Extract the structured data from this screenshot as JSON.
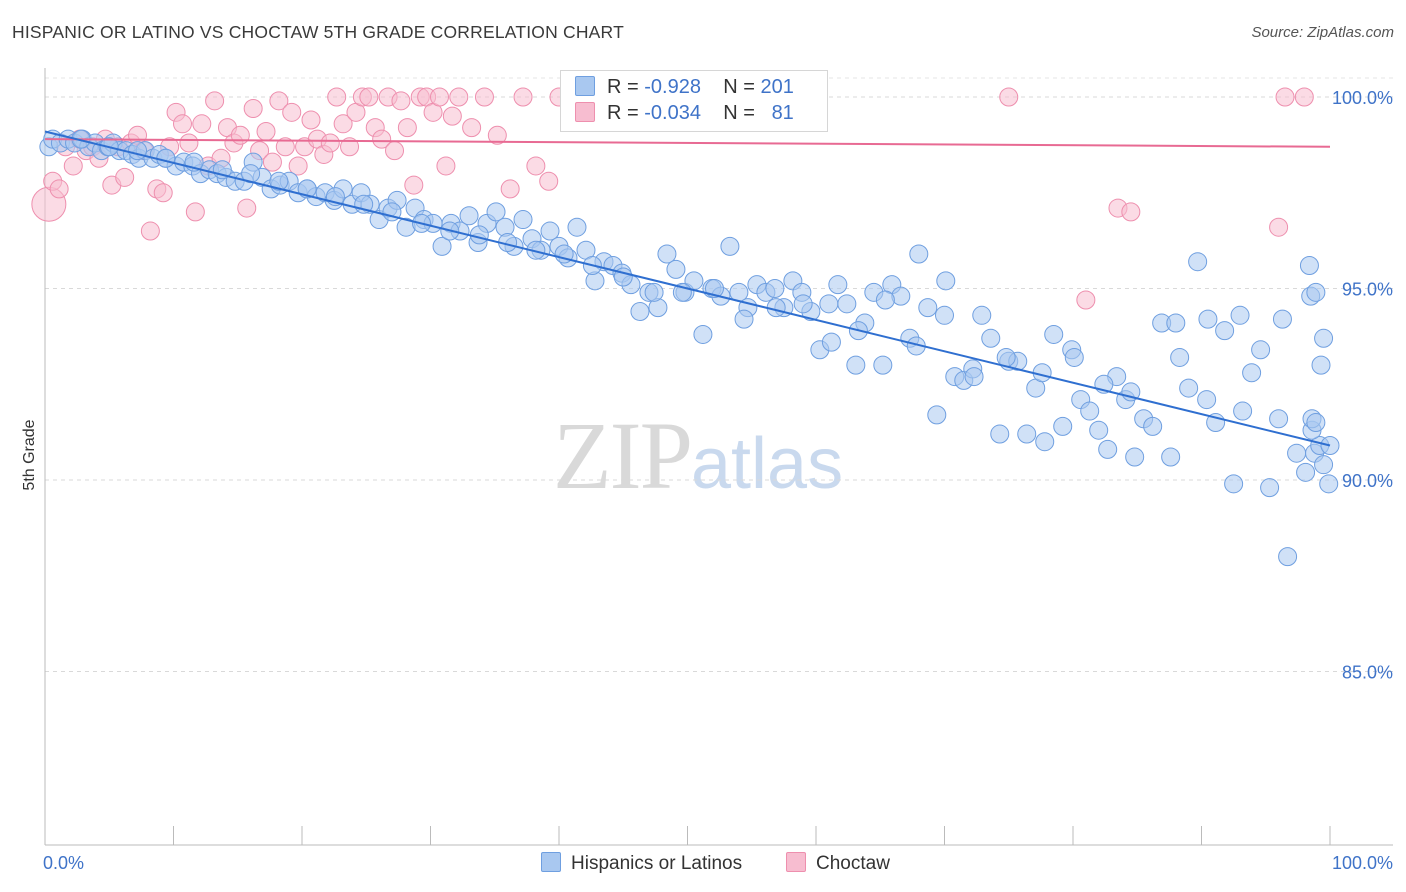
{
  "title": "HISPANIC OR LATINO VS CHOCTAW 5TH GRADE CORRELATION CHART",
  "source": "Source: ZipAtlas.com",
  "watermark": {
    "zip": "ZIP",
    "atlas": "atlas"
  },
  "legend": {
    "rows": [
      {
        "r_label": "R =",
        "r_value": "-0.928",
        "n_label": "N =",
        "n_value": "201"
      },
      {
        "r_label": "R =",
        "r_value": "-0.034",
        "n_label": "N =",
        "n_value": "81"
      }
    ]
  },
  "bottom_legend": {
    "series1": "Hispanics or Latinos",
    "series2": "Choctaw"
  },
  "colors": {
    "blue_fill": "#a9c8f0",
    "blue_stroke": "#6f9fe0",
    "blue_line": "#2f6fd0",
    "pink_fill": "#f7bdd0",
    "pink_stroke": "#ee8fae",
    "pink_line": "#e86a93",
    "tick_text": "#3f73c8"
  },
  "chart_data": {
    "type": "scatter",
    "title": "HISPANIC OR LATINO VS CHOCTAW 5TH GRADE CORRELATION CHART",
    "xlabel": "",
    "ylabel": "5th Grade",
    "xlim": [
      0,
      100
    ],
    "ylim": [
      80.0,
      100.5
    ],
    "x_tick_labels": [
      "0.0%",
      "100.0%"
    ],
    "y_ticks": [
      85.0,
      90.0,
      95.0,
      100.0
    ],
    "y_tick_labels": [
      "85.0%",
      "90.0%",
      "95.0%",
      "100.0%"
    ],
    "grid": "horizontal dashed",
    "legend_position": "top-center",
    "series": [
      {
        "name": "Hispanics or Latinos",
        "r": -0.928,
        "n": 201,
        "trend": [
          [
            0,
            99.1
          ],
          [
            100,
            90.9
          ]
        ],
        "points": [
          [
            0.3,
            98.7
          ],
          [
            0.6,
            98.9
          ],
          [
            1.2,
            98.8
          ],
          [
            1.8,
            98.9
          ],
          [
            2.3,
            98.8
          ],
          [
            2.9,
            98.9
          ],
          [
            3.4,
            98.7
          ],
          [
            3.9,
            98.8
          ],
          [
            4.4,
            98.6
          ],
          [
            4.9,
            98.7
          ],
          [
            5.3,
            98.8
          ],
          [
            5.8,
            98.6
          ],
          [
            6.3,
            98.6
          ],
          [
            6.8,
            98.5
          ],
          [
            7.3,
            98.4
          ],
          [
            7.8,
            98.6
          ],
          [
            8.4,
            98.4
          ],
          [
            8.9,
            98.5
          ],
          [
            9.4,
            98.4
          ],
          [
            10.2,
            98.2
          ],
          [
            10.8,
            98.3
          ],
          [
            11.5,
            98.2
          ],
          [
            12.1,
            98.0
          ],
          [
            12.8,
            98.1
          ],
          [
            13.4,
            98.0
          ],
          [
            14.1,
            97.9
          ],
          [
            14.8,
            97.8
          ],
          [
            15.5,
            97.8
          ],
          [
            16.2,
            98.3
          ],
          [
            16.9,
            97.9
          ],
          [
            17.6,
            97.6
          ],
          [
            18.3,
            97.7
          ],
          [
            19.0,
            97.8
          ],
          [
            19.7,
            97.5
          ],
          [
            20.4,
            97.6
          ],
          [
            21.1,
            97.4
          ],
          [
            21.8,
            97.5
          ],
          [
            22.5,
            97.3
          ],
          [
            23.2,
            97.6
          ],
          [
            23.9,
            97.2
          ],
          [
            24.6,
            97.5
          ],
          [
            25.3,
            97.2
          ],
          [
            26.0,
            96.8
          ],
          [
            26.7,
            97.1
          ],
          [
            27.4,
            97.3
          ],
          [
            28.1,
            96.6
          ],
          [
            28.8,
            97.1
          ],
          [
            29.5,
            96.8
          ],
          [
            30.2,
            96.7
          ],
          [
            30.9,
            96.1
          ],
          [
            31.6,
            96.7
          ],
          [
            32.3,
            96.5
          ],
          [
            33.0,
            96.9
          ],
          [
            33.7,
            96.2
          ],
          [
            34.4,
            96.7
          ],
          [
            35.1,
            97.0
          ],
          [
            35.8,
            96.6
          ],
          [
            36.5,
            96.1
          ],
          [
            37.2,
            96.8
          ],
          [
            37.9,
            96.3
          ],
          [
            38.6,
            96.0
          ],
          [
            39.3,
            96.5
          ],
          [
            40.0,
            96.1
          ],
          [
            40.7,
            95.8
          ],
          [
            41.4,
            96.6
          ],
          [
            42.1,
            96.0
          ],
          [
            42.8,
            95.2
          ],
          [
            43.5,
            95.7
          ],
          [
            44.2,
            95.6
          ],
          [
            44.9,
            95.4
          ],
          [
            45.6,
            95.1
          ],
          [
            46.3,
            94.4
          ],
          [
            47.0,
            94.9
          ],
          [
            47.7,
            94.5
          ],
          [
            48.4,
            95.9
          ],
          [
            49.1,
            95.5
          ],
          [
            49.8,
            94.9
          ],
          [
            50.5,
            95.2
          ],
          [
            51.2,
            93.8
          ],
          [
            51.9,
            95.0
          ],
          [
            52.6,
            94.8
          ],
          [
            53.3,
            96.1
          ],
          [
            54.0,
            94.9
          ],
          [
            54.7,
            94.5
          ],
          [
            55.4,
            95.1
          ],
          [
            56.1,
            94.9
          ],
          [
            56.8,
            95.0
          ],
          [
            57.5,
            94.5
          ],
          [
            58.2,
            95.2
          ],
          [
            58.9,
            94.9
          ],
          [
            59.6,
            94.4
          ],
          [
            60.3,
            93.4
          ],
          [
            61.0,
            94.6
          ],
          [
            61.7,
            95.1
          ],
          [
            62.4,
            94.6
          ],
          [
            63.1,
            93.0
          ],
          [
            63.8,
            94.1
          ],
          [
            64.5,
            94.9
          ],
          [
            65.2,
            93.0
          ],
          [
            65.9,
            95.1
          ],
          [
            66.6,
            94.8
          ],
          [
            67.3,
            93.7
          ],
          [
            68.0,
            95.9
          ],
          [
            68.7,
            94.5
          ],
          [
            69.4,
            91.7
          ],
          [
            70.1,
            95.2
          ],
          [
            70.8,
            92.7
          ],
          [
            71.5,
            92.6
          ],
          [
            72.2,
            92.9
          ],
          [
            72.9,
            94.3
          ],
          [
            73.6,
            93.7
          ],
          [
            74.3,
            91.2
          ],
          [
            75.0,
            93.1
          ],
          [
            75.7,
            93.1
          ],
          [
            76.4,
            91.2
          ],
          [
            77.1,
            92.4
          ],
          [
            77.8,
            91.0
          ],
          [
            78.5,
            93.8
          ],
          [
            79.2,
            91.4
          ],
          [
            79.9,
            93.4
          ],
          [
            80.6,
            92.1
          ],
          [
            81.3,
            91.8
          ],
          [
            82.0,
            91.3
          ],
          [
            82.7,
            90.8
          ],
          [
            83.4,
            92.7
          ],
          [
            84.1,
            92.1
          ],
          [
            84.8,
            90.6
          ],
          [
            85.5,
            91.6
          ],
          [
            86.2,
            91.4
          ],
          [
            86.9,
            94.1
          ],
          [
            87.6,
            90.6
          ],
          [
            88.3,
            93.2
          ],
          [
            89.0,
            92.4
          ],
          [
            89.7,
            95.7
          ],
          [
            90.4,
            92.1
          ],
          [
            91.1,
            91.5
          ],
          [
            91.8,
            93.9
          ],
          [
            92.5,
            89.9
          ],
          [
            93.2,
            91.8
          ],
          [
            93.9,
            92.8
          ],
          [
            94.6,
            93.4
          ],
          [
            95.3,
            89.8
          ],
          [
            96.0,
            91.6
          ],
          [
            96.7,
            88.0
          ],
          [
            97.4,
            90.7
          ],
          [
            98.1,
            90.2
          ],
          [
            98.8,
            90.7
          ],
          [
            99.5,
            90.4
          ],
          [
            99.9,
            89.9
          ],
          [
            96.3,
            94.2
          ],
          [
            93.0,
            94.3
          ],
          [
            90.5,
            94.2
          ],
          [
            88.0,
            94.1
          ],
          [
            84.5,
            92.3
          ],
          [
            82.4,
            92.5
          ],
          [
            80.1,
            93.2
          ],
          [
            77.6,
            92.8
          ],
          [
            74.8,
            93.2
          ],
          [
            72.3,
            92.7
          ],
          [
            70.0,
            94.3
          ],
          [
            67.8,
            93.5
          ],
          [
            65.4,
            94.7
          ],
          [
            63.3,
            93.9
          ],
          [
            61.2,
            93.6
          ],
          [
            59.0,
            94.6
          ],
          [
            56.9,
            94.5
          ],
          [
            54.4,
            94.2
          ],
          [
            52.1,
            95.0
          ],
          [
            49.6,
            94.9
          ],
          [
            47.4,
            94.9
          ],
          [
            45.0,
            95.3
          ],
          [
            42.6,
            95.6
          ],
          [
            40.4,
            95.9
          ],
          [
            38.2,
            96.0
          ],
          [
            36.0,
            96.2
          ],
          [
            33.8,
            96.4
          ],
          [
            31.5,
            96.5
          ],
          [
            29.3,
            96.7
          ],
          [
            27.0,
            97.0
          ],
          [
            24.8,
            97.2
          ],
          [
            22.6,
            97.4
          ],
          [
            20.4,
            97.6
          ],
          [
            18.2,
            97.8
          ],
          [
            16.0,
            98.0
          ],
          [
            13.8,
            98.1
          ],
          [
            11.6,
            98.3
          ],
          [
            9.4,
            98.4
          ],
          [
            7.2,
            98.6
          ],
          [
            5.0,
            98.7
          ],
          [
            2.8,
            98.9
          ],
          [
            99.2,
            90.9
          ],
          [
            100.0,
            90.9
          ],
          [
            98.6,
            91.3
          ],
          [
            98.4,
            95.6
          ],
          [
            98.5,
            94.8
          ],
          [
            98.9,
            94.9
          ],
          [
            99.3,
            93.0
          ],
          [
            99.5,
            93.7
          ],
          [
            98.6,
            91.6
          ],
          [
            98.9,
            91.5
          ]
        ]
      },
      {
        "name": "Choctaw",
        "r": -0.034,
        "n": 81,
        "trend": [
          [
            0,
            98.9
          ],
          [
            100,
            98.7
          ]
        ],
        "points": [
          [
            0.3,
            97.2
          ],
          [
            0.6,
            97.8
          ],
          [
            1.1,
            97.6
          ],
          [
            1.6,
            98.7
          ],
          [
            2.2,
            98.2
          ],
          [
            2.7,
            98.9
          ],
          [
            3.2,
            98.6
          ],
          [
            3.7,
            98.7
          ],
          [
            4.2,
            98.4
          ],
          [
            4.7,
            98.9
          ],
          [
            5.2,
            97.7
          ],
          [
            5.7,
            98.7
          ],
          [
            6.2,
            97.9
          ],
          [
            6.7,
            98.8
          ],
          [
            7.2,
            99.0
          ],
          [
            7.7,
            98.6
          ],
          [
            8.2,
            96.5
          ],
          [
            8.7,
            97.6
          ],
          [
            9.2,
            97.5
          ],
          [
            9.7,
            98.7
          ],
          [
            10.2,
            99.6
          ],
          [
            10.7,
            99.3
          ],
          [
            11.2,
            98.8
          ],
          [
            11.7,
            97.0
          ],
          [
            12.2,
            99.3
          ],
          [
            12.7,
            98.2
          ],
          [
            13.2,
            99.9
          ],
          [
            13.7,
            98.4
          ],
          [
            14.2,
            99.2
          ],
          [
            14.7,
            98.8
          ],
          [
            15.2,
            99.0
          ],
          [
            15.7,
            97.1
          ],
          [
            16.2,
            99.7
          ],
          [
            16.7,
            98.6
          ],
          [
            17.2,
            99.1
          ],
          [
            17.7,
            98.3
          ],
          [
            18.2,
            99.9
          ],
          [
            18.7,
            98.7
          ],
          [
            19.2,
            99.6
          ],
          [
            19.7,
            98.2
          ],
          [
            20.2,
            98.7
          ],
          [
            20.7,
            99.4
          ],
          [
            21.2,
            98.9
          ],
          [
            21.7,
            98.5
          ],
          [
            22.2,
            98.8
          ],
          [
            22.7,
            100.0
          ],
          [
            23.2,
            99.3
          ],
          [
            23.7,
            98.7
          ],
          [
            24.2,
            99.6
          ],
          [
            24.7,
            100.0
          ],
          [
            25.2,
            100.0
          ],
          [
            25.7,
            99.2
          ],
          [
            26.2,
            98.9
          ],
          [
            26.7,
            100.0
          ],
          [
            27.2,
            98.6
          ],
          [
            27.7,
            99.9
          ],
          [
            28.2,
            99.2
          ],
          [
            28.7,
            97.7
          ],
          [
            29.2,
            100.0
          ],
          [
            29.7,
            100.0
          ],
          [
            30.2,
            99.6
          ],
          [
            30.7,
            100.0
          ],
          [
            31.2,
            98.2
          ],
          [
            31.7,
            99.5
          ],
          [
            32.2,
            100.0
          ],
          [
            33.2,
            99.2
          ],
          [
            34.2,
            100.0
          ],
          [
            35.2,
            99.0
          ],
          [
            36.2,
            97.6
          ],
          [
            37.2,
            100.0
          ],
          [
            38.2,
            98.2
          ],
          [
            39.2,
            97.8
          ],
          [
            40.0,
            100.0
          ],
          [
            44.0,
            100.0
          ],
          [
            75.0,
            100.0
          ],
          [
            81.0,
            94.7
          ],
          [
            83.5,
            97.1
          ],
          [
            84.5,
            97.0
          ],
          [
            96.0,
            96.6
          ],
          [
            98.0,
            100.0
          ],
          [
            96.5,
            100.0
          ]
        ]
      }
    ]
  }
}
